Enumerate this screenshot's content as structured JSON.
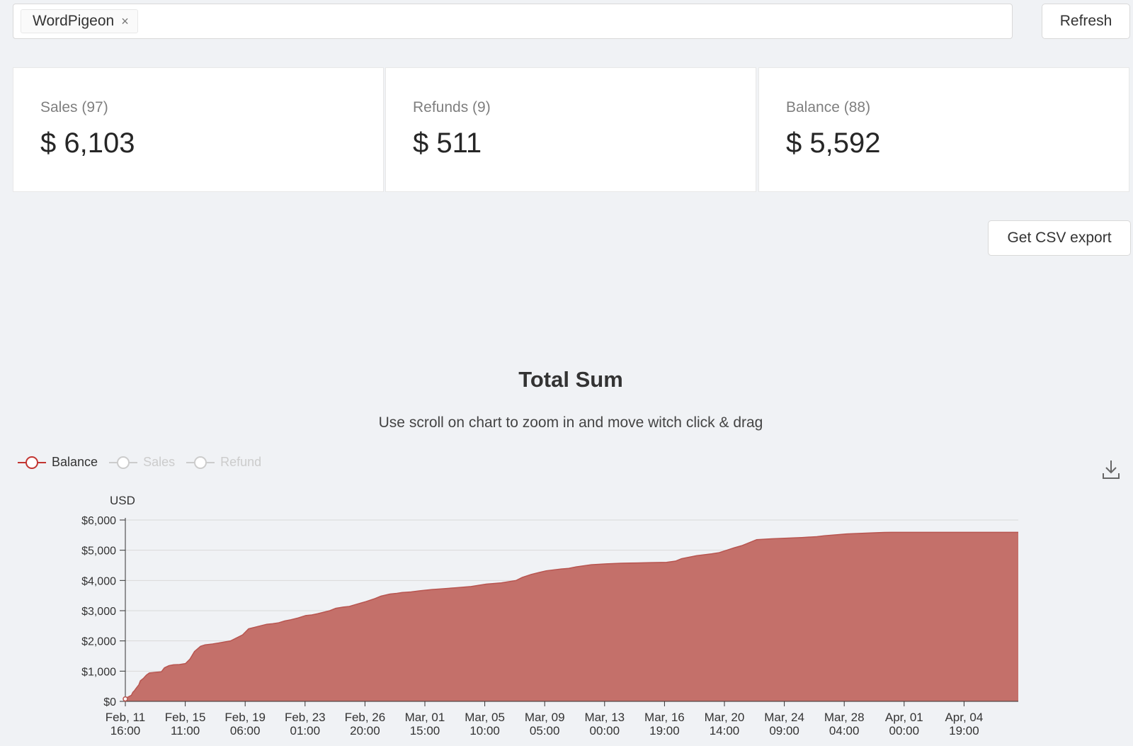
{
  "filter": {
    "tag_label": "WordPigeon",
    "tag_close": "×"
  },
  "refresh_label": "Refresh",
  "stats": [
    {
      "label": "Sales (97)",
      "value": "$ 6,103"
    },
    {
      "label": "Refunds (9)",
      "value": "$ 511"
    },
    {
      "label": "Balance (88)",
      "value": "$ 5,592"
    }
  ],
  "csv_label": "Get CSV export",
  "chart": {
    "title": "Total Sum",
    "subtitle": "Use scroll on chart to zoom in and move witch click & drag",
    "legend": [
      {
        "name": "Balance",
        "active": true
      },
      {
        "name": "Sales",
        "active": false
      },
      {
        "name": "Refund",
        "active": false
      }
    ],
    "download_icon": "download-icon"
  },
  "colors": {
    "area_fill": "#c4706a",
    "area_line": "#b85550",
    "legend_active": "#c23531",
    "legend_inactive": "#cccccc"
  },
  "chart_data": {
    "type": "area",
    "ylabel": "USD",
    "ylim": [
      0,
      6000
    ],
    "y_ticks": [
      "$0",
      "$1,000",
      "$2,000",
      "$3,000",
      "$4,000",
      "$5,000",
      "$6,000"
    ],
    "x_tick_labels": [
      [
        "Feb, 11",
        "16:00"
      ],
      [
        "Feb, 15",
        "11:00"
      ],
      [
        "Feb, 19",
        "06:00"
      ],
      [
        "Feb, 23",
        "01:00"
      ],
      [
        "Feb, 26",
        "20:00"
      ],
      [
        "Mar, 01",
        "15:00"
      ],
      [
        "Mar, 05",
        "10:00"
      ],
      [
        "Mar, 09",
        "05:00"
      ],
      [
        "Mar, 13",
        "00:00"
      ],
      [
        "Mar, 16",
        "19:00"
      ],
      [
        "Mar, 20",
        "14:00"
      ],
      [
        "Mar, 24",
        "09:00"
      ],
      [
        "Mar, 28",
        "04:00"
      ],
      [
        "Apr, 01",
        "00:00"
      ],
      [
        "Apr, 04",
        "19:00"
      ]
    ],
    "grid": true,
    "legend_position": "top-left",
    "series": [
      {
        "name": "Balance",
        "x": [
          0,
          0.1,
          0.2,
          0.4,
          0.5,
          0.6,
          0.7,
          0.9,
          1.0,
          1.2,
          1.4,
          1.6,
          2.0,
          2.4,
          2.6,
          2.9,
          3.2,
          3.6,
          4.0,
          4.3,
          4.6,
          5.0,
          5.3,
          5.8,
          6.2,
          7.0,
          7.4,
          7.8,
          8.2,
          8.6,
          9.0,
          9.4,
          9.8,
          10.2,
          10.6,
          11.0,
          11.5,
          12.0,
          12.4,
          12.8,
          13.2,
          13.6,
          14.0,
          14.5,
          14.9,
          15.3,
          16.0,
          16.6,
          17.0,
          17.6,
          18.0,
          18.4,
          19.0,
          19.6,
          20.0,
          20.4,
          21.0,
          22.0,
          23.0,
          24.0,
          25.0,
          26.0,
          26.4,
          27.0,
          28.0,
          29.0,
          29.5,
          30.0,
          31.0,
          32.0,
          33.0,
          34.0,
          35.0,
          36.0,
          36.6,
          37.0,
          38.0,
          39.0,
          39.5,
          40.0,
          40.5,
          41.0,
          42.0,
          43.0,
          44.0,
          45.0,
          46.0,
          46.5,
          47.0,
          48.0,
          49.0,
          50.0,
          50.5,
          51.0,
          52.0,
          53.0,
          54.0,
          55.0,
          55.3,
          56.0,
          57.0,
          58.0,
          59.0,
          59.4
        ],
        "y": [
          80,
          120,
          150,
          200,
          300,
          350,
          420,
          550,
          680,
          760,
          870,
          940,
          960,
          980,
          1110,
          1180,
          1210,
          1220,
          1250,
          1400,
          1650,
          1820,
          1870,
          1900,
          1930,
          2000,
          2100,
          2200,
          2400,
          2450,
          2500,
          2550,
          2570,
          2600,
          2660,
          2700,
          2760,
          2840,
          2860,
          2900,
          2950,
          3000,
          3080,
          3120,
          3140,
          3200,
          3300,
          3400,
          3480,
          3550,
          3570,
          3600,
          3620,
          3660,
          3680,
          3700,
          3720,
          3760,
          3800,
          3880,
          3920,
          4000,
          4100,
          4200,
          4320,
          4380,
          4400,
          4450,
          4520,
          4550,
          4570,
          4580,
          4590,
          4600,
          4640,
          4720,
          4820,
          4880,
          4920,
          5000,
          5080,
          5150,
          5350,
          5380,
          5400,
          5420,
          5450,
          5480,
          5500,
          5540,
          5560,
          5580,
          5590,
          5592,
          5592,
          5592,
          5592,
          5592,
          5592,
          5592,
          5592,
          5592,
          5592,
          5592
        ]
      }
    ]
  }
}
